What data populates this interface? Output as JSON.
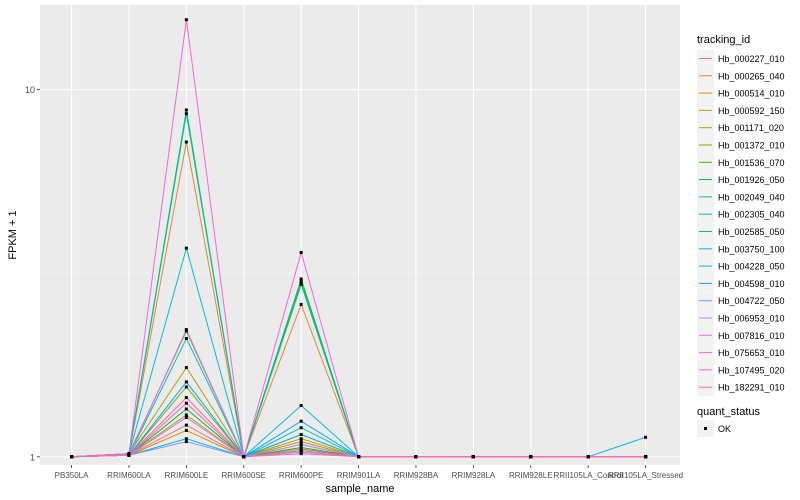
{
  "chart_data": {
    "type": "line",
    "xlabel": "sample_name",
    "ylabel": "FPKM + 1",
    "y_scale": "log10",
    "ylim": [
      0.95,
      17
    ],
    "y_ticks": [
      "1",
      "10"
    ],
    "y_tick_values": [
      1,
      10
    ],
    "grid": true,
    "legend_position": "right",
    "categories": [
      "PB350LA",
      "RRIM600LA",
      "RRIM600LE",
      "RRIM600SE",
      "RRIM600PE",
      "RRIM901LA",
      "RRIM928BA",
      "RRIM928LA",
      "RRIM928LE",
      "RRII105LA_Control",
      "RRII105LA_Stressed"
    ],
    "legend_title": "tracking_id",
    "series": [
      {
        "name": "Hb_000227_010",
        "color": "#F8766D",
        "values": [
          1,
          1.01,
          1.22,
          1,
          1.08,
          1,
          1,
          1,
          1,
          1,
          1
        ]
      },
      {
        "name": "Hb_000265_040",
        "color": "#EB8335",
        "values": [
          1,
          1.02,
          7.2,
          1,
          2.6,
          1,
          1,
          1,
          1,
          1,
          1
        ]
      },
      {
        "name": "Hb_000514_010",
        "color": "#DA8F00",
        "values": [
          1,
          1.01,
          1.18,
          1,
          1.12,
          1,
          1,
          1,
          1,
          1,
          1
        ]
      },
      {
        "name": "Hb_000592_150",
        "color": "#C49A00",
        "values": [
          1,
          1.01,
          1.3,
          1,
          1.05,
          1,
          1,
          1,
          1,
          1,
          1
        ]
      },
      {
        "name": "Hb_001171_020",
        "color": "#A9A400",
        "values": [
          1,
          1.02,
          1.75,
          1,
          1.1,
          1,
          1,
          1,
          1,
          1,
          1
        ]
      },
      {
        "name": "Hb_001372_010",
        "color": "#86AC00",
        "values": [
          1,
          1.01,
          1.55,
          1,
          1.15,
          1,
          1,
          1,
          1,
          1,
          1
        ]
      },
      {
        "name": "Hb_001536_070",
        "color": "#53B400",
        "values": [
          1,
          1.02,
          2.2,
          1,
          3.0,
          1,
          1,
          1,
          1,
          1,
          1
        ]
      },
      {
        "name": "Hb_001926_050",
        "color": "#00BA38",
        "values": [
          1,
          1.01,
          1.35,
          1,
          1.06,
          1,
          1,
          1,
          1,
          1,
          1
        ]
      },
      {
        "name": "Hb_002049_040",
        "color": "#00BE6C",
        "values": [
          1,
          1.02,
          8.8,
          1,
          3.05,
          1,
          1,
          1,
          1,
          1,
          1
        ]
      },
      {
        "name": "Hb_002305_040",
        "color": "#00C094",
        "values": [
          1,
          1.02,
          8.6,
          1,
          2.95,
          1,
          1,
          1,
          1,
          1,
          1
        ]
      },
      {
        "name": "Hb_002585_050",
        "color": "#00C0B8",
        "values": [
          1,
          1.01,
          2.1,
          1,
          1.2,
          1,
          1,
          1,
          1,
          1,
          1
        ]
      },
      {
        "name": "Hb_003750_100",
        "color": "#00BDD8",
        "values": [
          1,
          1.02,
          3.7,
          1,
          1.38,
          1,
          1,
          1,
          1,
          1,
          1
        ]
      },
      {
        "name": "Hb_004228_050",
        "color": "#00B5EE",
        "values": [
          1,
          1.01,
          1.12,
          1,
          1.15,
          1,
          1,
          1,
          1,
          1,
          1.13
        ]
      },
      {
        "name": "Hb_004598_010",
        "color": "#00A7FF",
        "values": [
          1,
          1.01,
          1.6,
          1,
          1.25,
          1,
          1,
          1,
          1,
          1,
          1
        ]
      },
      {
        "name": "Hb_004722_050",
        "color": "#7F96FF",
        "values": [
          1,
          1.01,
          1.1,
          1,
          1.03,
          1,
          1,
          1,
          1,
          1,
          1
        ]
      },
      {
        "name": "Hb_006953_010",
        "color": "#BC81FF",
        "values": [
          1,
          1.01,
          1.28,
          1,
          1.08,
          1,
          1,
          1,
          1,
          1,
          1
        ]
      },
      {
        "name": "Hb_007816_010",
        "color": "#E26EF7",
        "values": [
          1,
          1.01,
          2.22,
          1,
          1.04,
          1,
          1,
          1,
          1,
          1,
          1
        ]
      },
      {
        "name": "Hb_075653_010",
        "color": "#F863DF",
        "values": [
          1,
          1.02,
          15.5,
          1,
          3.6,
          1,
          1,
          1,
          1,
          1,
          1
        ]
      },
      {
        "name": "Hb_107495_020",
        "color": "#FF62BC",
        "values": [
          1,
          1.01,
          1.45,
          1,
          1.04,
          1,
          1,
          1,
          1,
          1,
          1
        ]
      },
      {
        "name": "Hb_182291_010",
        "color": "#FF6A98",
        "values": [
          1,
          1.01,
          1.4,
          1,
          1.02,
          1,
          1,
          1,
          1,
          1,
          1
        ]
      }
    ],
    "shape_legend": {
      "title": "quant_status",
      "items": [
        {
          "label": "OK",
          "shape": "square",
          "color": "#000000"
        }
      ]
    }
  }
}
